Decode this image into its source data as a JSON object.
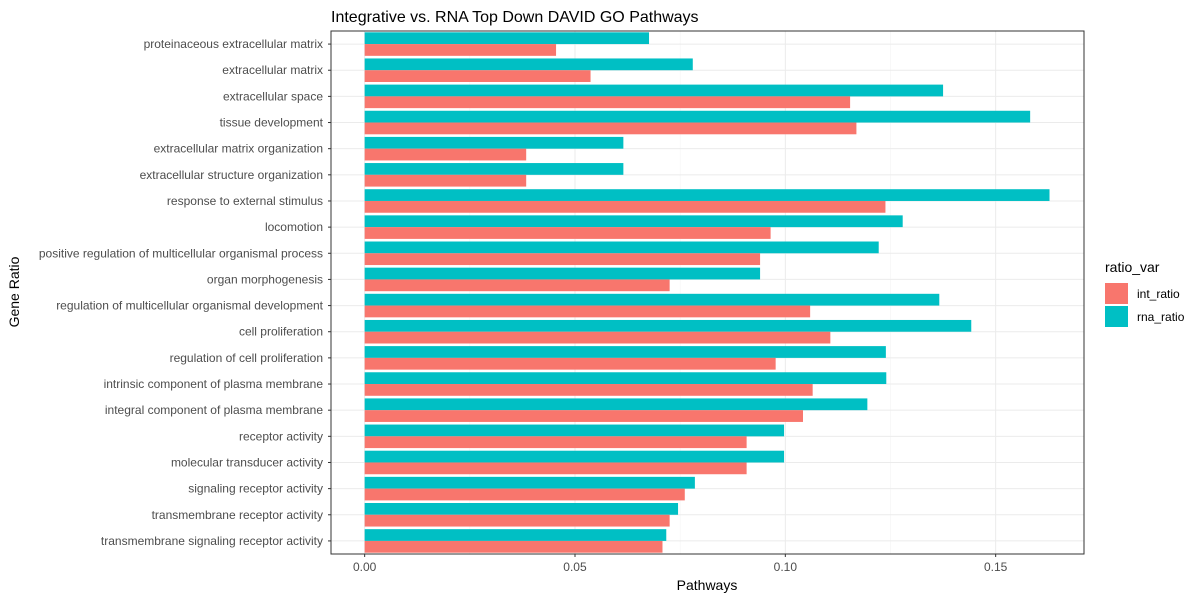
{
  "chart_data": {
    "type": "bar",
    "orientation": "horizontal",
    "title": "Integrative vs. RNA Top Down DAVID GO Pathways",
    "xlabel": "Pathways",
    "ylabel": "Gene Ratio",
    "xlim": [
      -0.008,
      0.171
    ],
    "x_ticks": [
      0.0,
      0.05,
      0.1,
      0.15
    ],
    "x_tick_labels": [
      "0.00",
      "0.05",
      "0.10",
      "0.15"
    ],
    "grid": true,
    "legend": {
      "title": "ratio_var",
      "position": "right"
    },
    "categories": [
      "proteinaceous extracellular matrix",
      "extracellular matrix",
      "extracellular space",
      "tissue development",
      "extracellular matrix organization",
      "extracellular structure organization",
      "response to external stimulus",
      "locomotion",
      "positive regulation of multicellular organismal process",
      "organ morphogenesis",
      "regulation of multicellular organismal development",
      "cell proliferation",
      "regulation of cell proliferation",
      "intrinsic component of plasma membrane",
      "integral component of plasma membrane",
      "receptor activity",
      "molecular transducer activity",
      "signaling receptor activity",
      "transmembrane receptor activity",
      "transmembrane signaling receptor activity"
    ],
    "series": [
      {
        "name": "int_ratio",
        "color": "#F8766D",
        "values": [
          0.0455,
          0.0537,
          0.1154,
          0.1169,
          0.0384,
          0.0384,
          0.1238,
          0.0965,
          0.094,
          0.0725,
          0.1059,
          0.1107,
          0.0977,
          0.1065,
          0.1042,
          0.0908,
          0.0908,
          0.0761,
          0.0725,
          0.0708
        ]
      },
      {
        "name": "rna_ratio",
        "color": "#00BFC4",
        "values": [
          0.0676,
          0.078,
          0.1375,
          0.1582,
          0.0615,
          0.0615,
          0.1628,
          0.1279,
          0.1222,
          0.094,
          0.1366,
          0.1442,
          0.1239,
          0.124,
          0.1195,
          0.0997,
          0.0997,
          0.0785,
          0.0745,
          0.0717
        ]
      }
    ]
  }
}
